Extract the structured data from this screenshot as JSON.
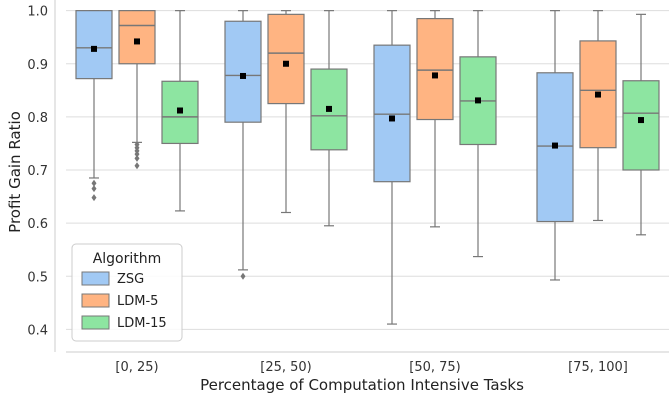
{
  "chart_data": {
    "type": "box",
    "xlabel": "Percentage of Computation Intensive Tasks",
    "ylabel": "Profit Gain Ratio",
    "ylim": [
      0.38,
      1.02
    ],
    "yticks": [
      "0.4",
      "0.5",
      "0.6",
      "0.7",
      "0.8",
      "0.9",
      "1.0"
    ],
    "grid": "horizontal",
    "legend": {
      "title": "Algorithm",
      "position": "lower-left"
    },
    "categories": [
      "[0, 25)",
      "[25, 50)",
      "[50, 75)",
      "[75, 100]"
    ],
    "series": [
      {
        "name": "ZSG",
        "color": "#a1c9f4",
        "boxes": [
          {
            "whisker_low": 0.685,
            "q1": 0.872,
            "median": 0.93,
            "q3": 1.0,
            "whisker_high": 1.0,
            "mean": 0.928,
            "outliers": [
              0.675,
              0.665,
              0.648
            ]
          },
          {
            "whisker_low": 0.512,
            "q1": 0.79,
            "median": 0.878,
            "q3": 0.98,
            "whisker_high": 1.0,
            "mean": 0.877,
            "outliers": [
              0.5
            ]
          },
          {
            "whisker_low": 0.41,
            "q1": 0.678,
            "median": 0.805,
            "q3": 0.935,
            "whisker_high": 1.0,
            "mean": 0.797,
            "outliers": []
          },
          {
            "whisker_low": 0.493,
            "q1": 0.603,
            "median": 0.745,
            "q3": 0.883,
            "whisker_high": 1.0,
            "mean": 0.746,
            "outliers": []
          }
        ]
      },
      {
        "name": "LDM-5",
        "color": "#ffb482",
        "boxes": [
          {
            "whisker_low": 0.752,
            "q1": 0.9,
            "median": 0.972,
            "q3": 1.0,
            "whisker_high": 1.0,
            "mean": 0.942,
            "outliers": [
              0.748,
              0.742,
              0.736,
              0.73,
              0.722,
              0.708
            ]
          },
          {
            "whisker_low": 0.62,
            "q1": 0.825,
            "median": 0.92,
            "q3": 0.993,
            "whisker_high": 1.0,
            "mean": 0.9,
            "outliers": []
          },
          {
            "whisker_low": 0.593,
            "q1": 0.795,
            "median": 0.888,
            "q3": 0.985,
            "whisker_high": 1.0,
            "mean": 0.878,
            "outliers": []
          },
          {
            "whisker_low": 0.605,
            "q1": 0.742,
            "median": 0.85,
            "q3": 0.943,
            "whisker_high": 1.0,
            "mean": 0.842,
            "outliers": []
          }
        ]
      },
      {
        "name": "LDM-15",
        "color": "#8de5a1",
        "boxes": [
          {
            "whisker_low": 0.623,
            "q1": 0.75,
            "median": 0.8,
            "q3": 0.867,
            "whisker_high": 1.0,
            "mean": 0.812,
            "outliers": []
          },
          {
            "whisker_low": 0.595,
            "q1": 0.738,
            "median": 0.802,
            "q3": 0.89,
            "whisker_high": 1.0,
            "mean": 0.815,
            "outliers": []
          },
          {
            "whisker_low": 0.537,
            "q1": 0.748,
            "median": 0.83,
            "q3": 0.913,
            "whisker_high": 1.0,
            "mean": 0.831,
            "outliers": []
          },
          {
            "whisker_low": 0.578,
            "q1": 0.7,
            "median": 0.807,
            "q3": 0.868,
            "whisker_high": 0.993,
            "mean": 0.794,
            "outliers": []
          }
        ]
      }
    ]
  }
}
